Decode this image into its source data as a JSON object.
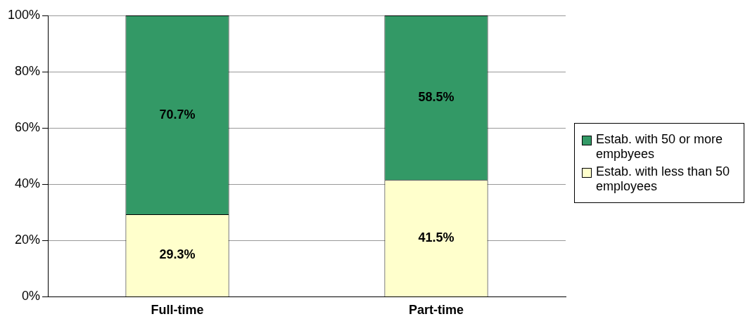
{
  "chart_data": {
    "type": "bar",
    "stacked": true,
    "categories": [
      "Full-time",
      "Part-time"
    ],
    "series": [
      {
        "name": "Estab. with less than 50 employees",
        "color": "#ffffcc",
        "values": [
          29.3,
          41.5
        ],
        "value_labels": [
          "29.3%",
          "41.5%"
        ]
      },
      {
        "name": "Estab. with 50 or more empbyees",
        "color": "#339966",
        "values": [
          70.7,
          58.5
        ],
        "value_labels": [
          "70.7%",
          "58.5%"
        ]
      }
    ],
    "ylim": [
      0,
      100
    ],
    "yticks": [
      {
        "value": 0,
        "label": "0%"
      },
      {
        "value": 20,
        "label": "20%"
      },
      {
        "value": 40,
        "label": "40%"
      },
      {
        "value": 60,
        "label": "60%"
      },
      {
        "value": 80,
        "label": "80%"
      },
      {
        "value": 100,
        "label": "100%"
      }
    ],
    "grid": "y",
    "legend": "right"
  }
}
